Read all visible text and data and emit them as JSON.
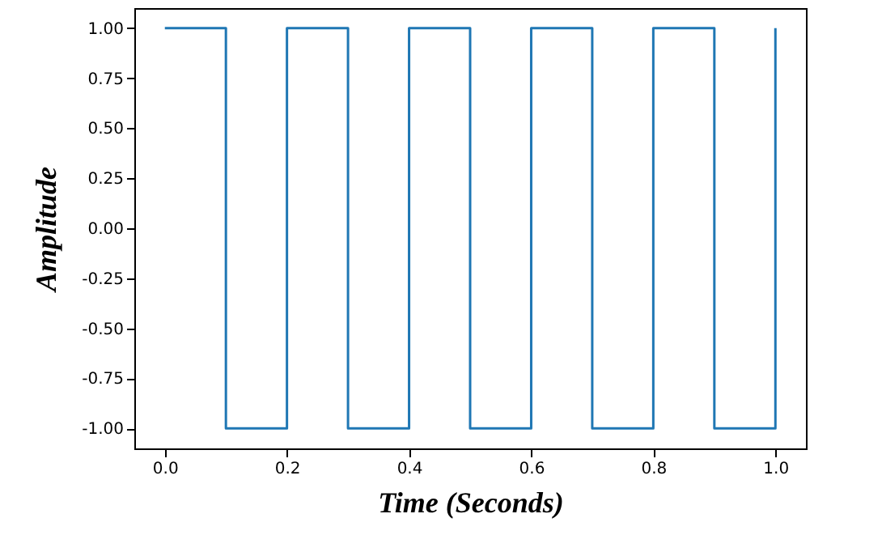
{
  "chart_data": {
    "type": "step",
    "xlabel": "Time (Seconds)",
    "ylabel": "Amplitude",
    "x": [
      0,
      0.1,
      0.2,
      0.3,
      0.4,
      0.5,
      0.6,
      0.7,
      0.8,
      0.9,
      1.0
    ],
    "series": [
      {
        "color": "#1f77b4",
        "values": [
          1,
          -1,
          1,
          -1,
          1,
          -1,
          1,
          -1,
          1,
          -1,
          1
        ]
      }
    ],
    "xlim": [
      -0.05,
      1.05
    ],
    "ylim": [
      -1.1,
      1.1
    ],
    "xticks": [
      {
        "value": 0,
        "label": "0.0"
      },
      {
        "value": 0.2,
        "label": "0.2"
      },
      {
        "value": 0.4,
        "label": "0.4"
      },
      {
        "value": 0.6,
        "label": "0.6"
      },
      {
        "value": 0.8,
        "label": "0.8"
      },
      {
        "value": 1.0,
        "label": "1.0"
      }
    ],
    "yticks": [
      {
        "value": -1,
        "label": "-1.00"
      },
      {
        "value": -0.75,
        "label": "-0.75"
      },
      {
        "value": -0.5,
        "label": "-0.50"
      },
      {
        "value": -0.25,
        "label": "-0.25"
      },
      {
        "value": 0,
        "label": "0.00"
      },
      {
        "value": 0.25,
        "label": "0.25"
      },
      {
        "value": 0.5,
        "label": "0.50"
      },
      {
        "value": 0.75,
        "label": "0.75"
      },
      {
        "value": 1,
        "label": "1.00"
      }
    ],
    "grid": false,
    "line_style": "solid"
  }
}
